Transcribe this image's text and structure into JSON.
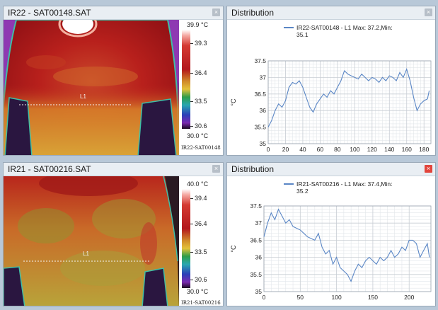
{
  "panels": {
    "ir22": {
      "title": "IR22 - SAT00148.SAT",
      "close": "×",
      "scale": {
        "max": "39.9 °C",
        "t1": "39.3",
        "t2": "36.4",
        "t3": "33.5",
        "t4": "30.6",
        "min": "30.0 °C"
      },
      "filename": "IR22-SAT00148",
      "line_label": "L1"
    },
    "ir21": {
      "title": "IR21 - SAT00216.SAT",
      "close": "×",
      "scale": {
        "max": "40.0 °C",
        "t1": "39.4",
        "t2": "36.4",
        "t3": "33.5",
        "t4": "30.6",
        "min": "30.0 °C"
      },
      "filename": "IR21-SAT00216",
      "line_label": "L1"
    },
    "dist_top": {
      "title": "Distribution",
      "close": "×"
    },
    "dist_bottom": {
      "title": "Distribution",
      "close": "×"
    }
  },
  "colors": {
    "accent_line": "#5a86c5",
    "grid": "#c8cdd4",
    "close_red": "#e2453c"
  },
  "chart_data": [
    {
      "type": "line",
      "legend_line1": "IR22-SAT00148 - L1 Max: 37.2,Min:",
      "legend_line2": "35.1",
      "ylabel": "°C",
      "xlim": [
        0,
        188
      ],
      "ylim": [
        35,
        37.5
      ],
      "xticks": [
        0,
        20,
        40,
        60,
        80,
        100,
        120,
        140,
        160,
        180
      ],
      "yticks": [
        35,
        35.5,
        36,
        36.5,
        37,
        37.5
      ],
      "series": [
        {
          "x": [
            0,
            4,
            8,
            12,
            16,
            20,
            24,
            28,
            32,
            36,
            40,
            44,
            48,
            52,
            56,
            60,
            64,
            68,
            72,
            76,
            80,
            84,
            88,
            92,
            96,
            100,
            104,
            108,
            112,
            116,
            120,
            124,
            128,
            132,
            136,
            140,
            144,
            148,
            152,
            156,
            160,
            164,
            168,
            172,
            176,
            180,
            184,
            186
          ],
          "values": [
            35.5,
            35.7,
            36.0,
            36.2,
            36.1,
            36.3,
            36.7,
            36.85,
            36.8,
            36.9,
            36.7,
            36.4,
            36.1,
            35.95,
            36.2,
            36.35,
            36.5,
            36.4,
            36.6,
            36.5,
            36.7,
            36.9,
            37.2,
            37.1,
            37.05,
            37.0,
            36.95,
            37.1,
            37.0,
            36.9,
            37.0,
            36.95,
            36.85,
            37.0,
            36.9,
            37.05,
            37.0,
            36.9,
            37.15,
            37.0,
            37.25,
            36.9,
            36.4,
            36.0,
            36.2,
            36.3,
            36.35,
            36.6
          ]
        }
      ]
    },
    {
      "type": "line",
      "legend_line1": "IR21-SAT00216 - L1 Max: 37.4,Min:",
      "legend_line2": "35.2",
      "ylabel": "°C",
      "xlim": [
        0,
        230
      ],
      "ylim": [
        35,
        37.5
      ],
      "xticks": [
        0,
        50,
        100,
        150,
        200
      ],
      "yticks": [
        35,
        35.5,
        36,
        36.5,
        37,
        37.5
      ],
      "series": [
        {
          "x": [
            0,
            5,
            10,
            15,
            20,
            25,
            30,
            35,
            40,
            45,
            50,
            55,
            60,
            65,
            70,
            75,
            80,
            85,
            90,
            95,
            100,
            105,
            110,
            115,
            120,
            125,
            130,
            135,
            140,
            145,
            150,
            155,
            160,
            165,
            170,
            175,
            180,
            185,
            190,
            195,
            200,
            205,
            210,
            215,
            220,
            225,
            228
          ],
          "values": [
            36.6,
            37.0,
            37.3,
            37.1,
            37.4,
            37.2,
            37.0,
            37.1,
            36.9,
            36.85,
            36.8,
            36.7,
            36.6,
            36.55,
            36.5,
            36.7,
            36.3,
            36.1,
            36.2,
            35.8,
            36.0,
            35.7,
            35.6,
            35.5,
            35.3,
            35.6,
            35.8,
            35.7,
            35.9,
            36.0,
            35.9,
            35.8,
            36.0,
            35.9,
            36.0,
            36.2,
            36.0,
            36.1,
            36.3,
            36.2,
            36.5,
            36.5,
            36.4,
            36.0,
            36.2,
            36.4,
            36.0
          ]
        }
      ]
    }
  ]
}
